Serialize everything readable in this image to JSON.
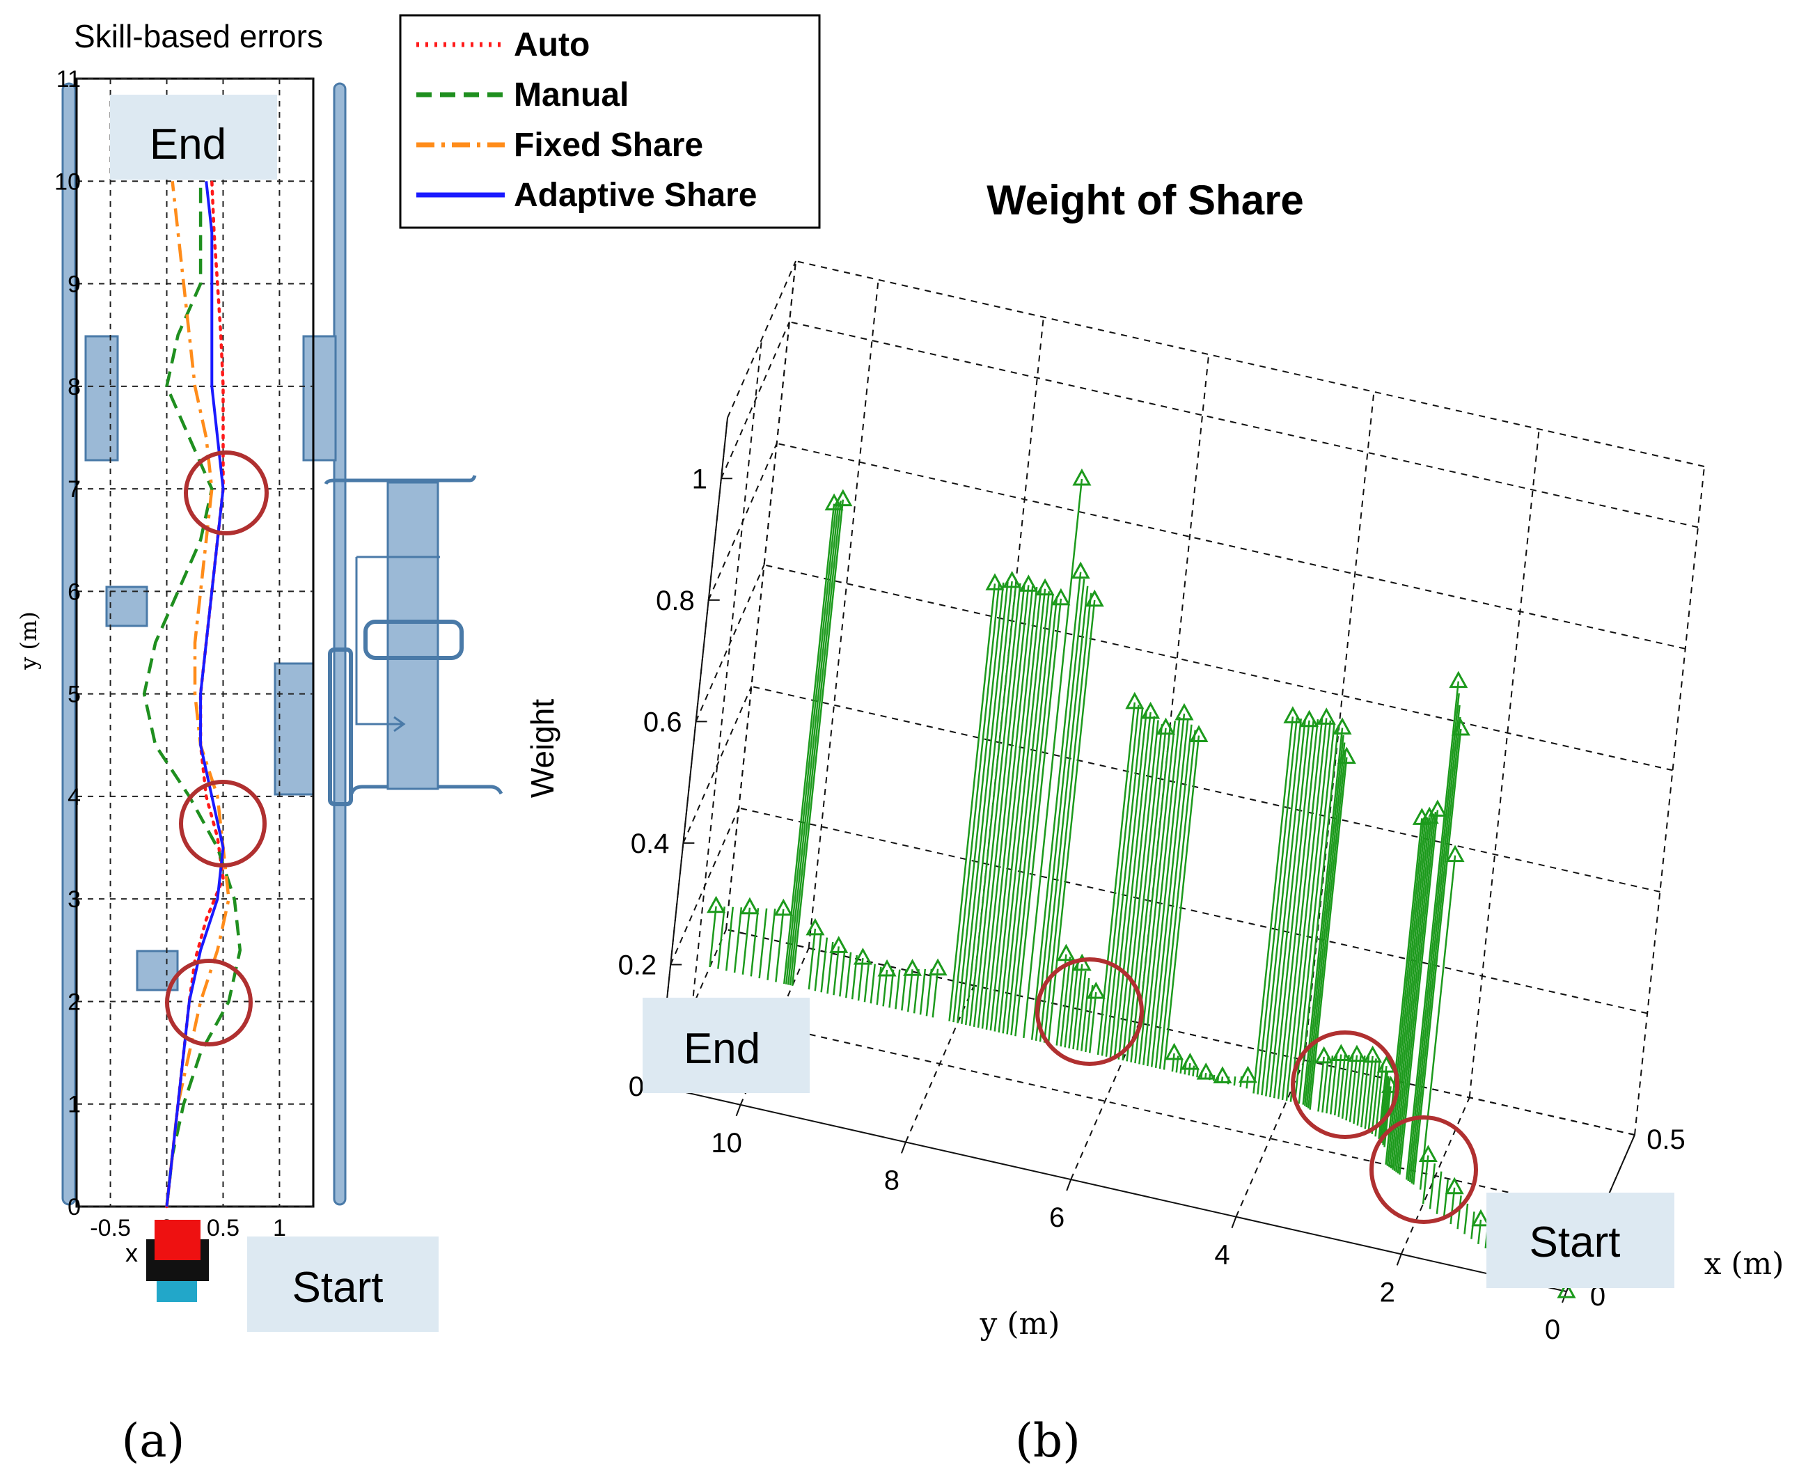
{
  "colors": {
    "auto": "#ff1a1a",
    "manual": "#1f8f1f",
    "fixed_share": "#ff8c1a",
    "adaptive_share": "#1a1aff",
    "weight_stem": "#1c9a1c",
    "highlight_circle": "#b03030",
    "obstacle_fill": "#9bb9d6",
    "obstacle_stroke": "#4a7aa8",
    "label_box": "#dde9f2"
  },
  "panel_labels": {
    "a": "(a)",
    "b": "(b)"
  },
  "chart_data": [
    {
      "type": "line",
      "title": "Skill-based errors",
      "xlabel": "x (m)",
      "ylabel": "y (m)",
      "xlim": [
        -0.8,
        1.3
      ],
      "ylim": [
        0,
        11
      ],
      "xticks": [
        -0.5,
        0,
        0.5,
        1
      ],
      "xtick_labels": [
        "-0.5",
        "0",
        "0.5",
        "1"
      ],
      "yticks": [
        0,
        1,
        2,
        3,
        4,
        5,
        6,
        7,
        8,
        9,
        10,
        11
      ],
      "ytick_labels": [
        "0",
        "1",
        "2",
        "3",
        "4",
        "5",
        "6",
        "7",
        "8",
        "9",
        "10",
        "11"
      ],
      "grid": true,
      "legend": {
        "placement": "top-right-outside"
      },
      "start_label": "Start",
      "end_label": "End",
      "series": [
        {
          "name": "Auto",
          "style": "dotted",
          "points": [
            [
              0.0,
              0.0
            ],
            [
              0.05,
              0.5
            ],
            [
              0.1,
              1.0
            ],
            [
              0.15,
              1.5
            ],
            [
              0.2,
              2.0
            ],
            [
              0.25,
              2.4
            ],
            [
              0.35,
              2.8
            ],
            [
              0.5,
              3.2
            ],
            [
              0.45,
              3.6
            ],
            [
              0.35,
              4.0
            ],
            [
              0.3,
              4.5
            ],
            [
              0.3,
              5.0
            ],
            [
              0.35,
              5.5
            ],
            [
              0.4,
              6.0
            ],
            [
              0.45,
              6.5
            ],
            [
              0.5,
              7.0
            ],
            [
              0.5,
              7.5
            ],
            [
              0.5,
              8.0
            ],
            [
              0.48,
              8.5
            ],
            [
              0.45,
              9.0
            ],
            [
              0.42,
              9.5
            ],
            [
              0.4,
              10.0
            ]
          ]
        },
        {
          "name": "Manual",
          "style": "dashed",
          "points": [
            [
              0.0,
              0.0
            ],
            [
              0.05,
              0.5
            ],
            [
              0.15,
              1.0
            ],
            [
              0.3,
              1.5
            ],
            [
              0.55,
              2.0
            ],
            [
              0.65,
              2.5
            ],
            [
              0.6,
              3.0
            ],
            [
              0.45,
              3.5
            ],
            [
              0.2,
              4.0
            ],
            [
              -0.1,
              4.5
            ],
            [
              -0.2,
              5.0
            ],
            [
              -0.1,
              5.5
            ],
            [
              0.1,
              6.0
            ],
            [
              0.3,
              6.5
            ],
            [
              0.4,
              7.0
            ],
            [
              0.2,
              7.5
            ],
            [
              0.0,
              8.0
            ],
            [
              0.1,
              8.5
            ],
            [
              0.3,
              9.0
            ],
            [
              0.3,
              9.5
            ],
            [
              0.3,
              10.0
            ]
          ]
        },
        {
          "name": "Fixed Share",
          "style": "dashdot",
          "points": [
            [
              0.0,
              0.0
            ],
            [
              0.05,
              0.5
            ],
            [
              0.1,
              1.0
            ],
            [
              0.2,
              1.5
            ],
            [
              0.3,
              2.0
            ],
            [
              0.45,
              2.5
            ],
            [
              0.55,
              3.0
            ],
            [
              0.5,
              3.5
            ],
            [
              0.45,
              4.0
            ],
            [
              0.3,
              4.5
            ],
            [
              0.25,
              5.0
            ],
            [
              0.25,
              5.5
            ],
            [
              0.3,
              6.0
            ],
            [
              0.35,
              6.5
            ],
            [
              0.4,
              7.0
            ],
            [
              0.35,
              7.5
            ],
            [
              0.25,
              8.0
            ],
            [
              0.2,
              8.5
            ],
            [
              0.15,
              9.0
            ],
            [
              0.1,
              9.5
            ],
            [
              0.05,
              10.0
            ]
          ]
        },
        {
          "name": "Adaptive Share",
          "style": "solid",
          "points": [
            [
              0.0,
              0.0
            ],
            [
              0.05,
              0.5
            ],
            [
              0.1,
              1.0
            ],
            [
              0.15,
              1.5
            ],
            [
              0.2,
              2.0
            ],
            [
              0.3,
              2.5
            ],
            [
              0.45,
              3.0
            ],
            [
              0.5,
              3.5
            ],
            [
              0.4,
              4.0
            ],
            [
              0.3,
              4.5
            ],
            [
              0.3,
              5.0
            ],
            [
              0.35,
              5.5
            ],
            [
              0.4,
              6.0
            ],
            [
              0.45,
              6.5
            ],
            [
              0.5,
              7.0
            ],
            [
              0.45,
              7.5
            ],
            [
              0.4,
              8.0
            ],
            [
              0.4,
              8.5
            ],
            [
              0.4,
              9.0
            ],
            [
              0.4,
              9.5
            ],
            [
              0.35,
              10.0
            ]
          ]
        }
      ]
    },
    {
      "type": "stem3d",
      "title": "Weight of Share",
      "xlabel": "x  (m)",
      "ylabel": "y  (m)",
      "zlabel": "Weight",
      "xlim": [
        0,
        0.5
      ],
      "ylim": [
        0,
        11.5
      ],
      "zlim": [
        0,
        1.1
      ],
      "xticks": [
        0,
        0.5
      ],
      "xtick_labels": [
        "0",
        "0.5"
      ],
      "yticks": [
        0,
        2,
        4,
        6,
        8,
        10
      ],
      "ytick_labels": [
        "0",
        "2",
        "4",
        "6",
        "8",
        "10"
      ],
      "zticks": [
        0,
        0.2,
        0.4,
        0.6,
        0.8,
        1
      ],
      "ztick_labels": [
        "0",
        "0.2",
        "0.4",
        "0.6",
        "0.8",
        "1"
      ],
      "grid": true,
      "start_label": "Start",
      "end_label": "End",
      "points": [
        [
          0.0,
          0.0,
          0.0
        ],
        [
          0.02,
          0.4,
          0.01
        ],
        [
          0.05,
          0.8,
          0.02
        ],
        [
          0.08,
          1.2,
          0.04
        ],
        [
          0.12,
          1.6,
          0.06
        ],
        [
          0.16,
          2.0,
          0.08
        ],
        [
          0.2,
          2.1,
          0.55
        ],
        [
          0.21,
          2.2,
          0.75
        ],
        [
          0.22,
          2.3,
          0.82
        ],
        [
          0.23,
          2.4,
          0.6
        ],
        [
          0.24,
          2.5,
          0.58
        ],
        [
          0.25,
          2.6,
          0.57
        ],
        [
          0.3,
          2.7,
          0.1
        ],
        [
          0.32,
          2.8,
          0.12
        ],
        [
          0.34,
          3.0,
          0.12
        ],
        [
          0.35,
          3.2,
          0.11
        ],
        [
          0.36,
          3.4,
          0.1
        ],
        [
          0.36,
          3.6,
          0.09
        ],
        [
          0.36,
          3.7,
          0.58
        ],
        [
          0.37,
          3.8,
          0.62
        ],
        [
          0.37,
          4.0,
          0.63
        ],
        [
          0.37,
          4.2,
          0.62
        ],
        [
          0.37,
          4.4,
          0.62
        ],
        [
          0.38,
          4.5,
          0.02
        ],
        [
          0.38,
          4.8,
          0.01
        ],
        [
          0.38,
          5.0,
          0.01
        ],
        [
          0.38,
          5.2,
          0.02
        ],
        [
          0.38,
          5.4,
          0.03
        ],
        [
          0.38,
          5.5,
          0.55
        ],
        [
          0.38,
          5.7,
          0.58
        ],
        [
          0.38,
          5.9,
          0.55
        ],
        [
          0.38,
          6.1,
          0.57
        ],
        [
          0.38,
          6.3,
          0.58
        ],
        [
          0.38,
          6.4,
          0.1
        ],
        [
          0.38,
          6.6,
          0.14
        ],
        [
          0.38,
          6.8,
          0.15
        ],
        [
          0.38,
          6.9,
          0.73
        ],
        [
          0.38,
          7.1,
          0.77
        ],
        [
          0.38,
          7.2,
          0.92
        ],
        [
          0.38,
          7.3,
          0.72
        ],
        [
          0.38,
          7.5,
          0.73
        ],
        [
          0.38,
          7.7,
          0.73
        ],
        [
          0.38,
          7.9,
          0.73
        ],
        [
          0.38,
          8.1,
          0.72
        ],
        [
          0.38,
          8.3,
          0.08
        ],
        [
          0.38,
          8.6,
          0.07
        ],
        [
          0.38,
          8.9,
          0.06
        ],
        [
          0.38,
          9.2,
          0.07
        ],
        [
          0.38,
          9.5,
          0.08
        ],
        [
          0.38,
          9.8,
          0.1
        ],
        [
          0.38,
          10.0,
          0.8
        ],
        [
          0.38,
          10.1,
          0.79
        ],
        [
          0.38,
          10.2,
          0.12
        ],
        [
          0.38,
          10.6,
          0.11
        ],
        [
          0.38,
          11.0,
          0.1
        ]
      ]
    }
  ]
}
